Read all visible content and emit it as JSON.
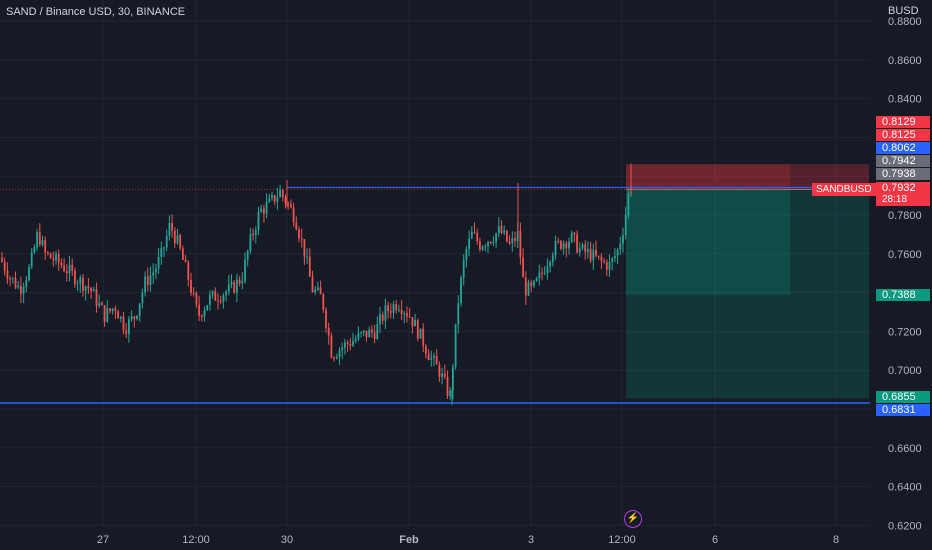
{
  "header": {
    "title": "SAND / Binance USD, 30, BINANCE",
    "currency": "BUSD"
  },
  "colors": {
    "background": "#161a25",
    "up": "#26a69a",
    "down": "#ef5350",
    "level_line": "#2962ff",
    "stop_zone": "#f23645",
    "target_zone": "#089981",
    "current_price_line": "#f23645"
  },
  "price_tags": [
    {
      "label": "0.8129",
      "color": "#f23645"
    },
    {
      "label": "0.8125",
      "color": "#f23645"
    },
    {
      "label": "0.8062",
      "color": "#2962ff"
    },
    {
      "label": "0.7942",
      "color": "#6a6d78"
    },
    {
      "label": "0.7938",
      "color": "#6a6d78"
    },
    {
      "label": "0.7932",
      "color": "#f23645"
    },
    {
      "label": "0.7388",
      "color": "#089981"
    },
    {
      "label": "0.6855",
      "color": "#089981"
    },
    {
      "label": "0.6831",
      "color": "#2962ff"
    }
  ],
  "symbol_tag": {
    "symbol": "SANDBUSD",
    "timer": "28:18"
  },
  "event_icon": "lightning-bolt-icon",
  "chart_data": {
    "type": "candlestick",
    "y_axis": {
      "min": 0.62,
      "max": 0.889,
      "position": "right",
      "ticks": [
        0.88,
        0.86,
        0.84,
        0.78,
        0.76,
        0.72,
        0.7,
        0.66,
        0.64,
        0.62
      ],
      "tick_labels": [
        "0.8800",
        "0.8600",
        "0.8400",
        "0.7800",
        "0.7600",
        "0.7200",
        "0.7000",
        "0.6600",
        "0.6400",
        "0.6200"
      ]
    },
    "x_axis": {
      "labels": [
        "27",
        "12:00",
        "30",
        "Feb",
        "3",
        "12:00",
        "6",
        "8"
      ]
    },
    "grid": true,
    "current_price": 0.7932,
    "horizontal_lines": [
      {
        "price": 0.7942,
        "color": "#2962ff",
        "start_label": "30"
      },
      {
        "price": 0.6831,
        "color": "#2962ff",
        "start_label": null
      }
    ],
    "position": {
      "entry": 0.7932,
      "stop": 0.8062,
      "targets": [
        0.7388,
        0.6855
      ]
    },
    "price_path": [
      [
        0,
        0.758
      ],
      [
        10,
        0.748
      ],
      [
        20,
        0.742
      ],
      [
        30,
        0.753
      ],
      [
        38,
        0.771
      ],
      [
        45,
        0.76
      ],
      [
        60,
        0.755
      ],
      [
        75,
        0.748
      ],
      [
        90,
        0.742
      ],
      [
        105,
        0.728
      ],
      [
        115,
        0.733
      ],
      [
        125,
        0.722
      ],
      [
        135,
        0.728
      ],
      [
        145,
        0.745
      ],
      [
        155,
        0.752
      ],
      [
        162,
        0.76
      ],
      [
        170,
        0.775
      ],
      [
        178,
        0.765
      ],
      [
        188,
        0.748
      ],
      [
        198,
        0.728
      ],
      [
        210,
        0.737
      ],
      [
        220,
        0.739
      ],
      [
        232,
        0.742
      ],
      [
        242,
        0.748
      ],
      [
        250,
        0.766
      ],
      [
        260,
        0.782
      ],
      [
        270,
        0.786
      ],
      [
        280,
        0.792
      ],
      [
        286,
        0.787
      ],
      [
        295,
        0.779
      ],
      [
        305,
        0.76
      ],
      [
        312,
        0.742
      ],
      [
        322,
        0.737
      ],
      [
        332,
        0.708
      ],
      [
        342,
        0.712
      ],
      [
        352,
        0.715
      ],
      [
        362,
        0.718
      ],
      [
        375,
        0.72
      ],
      [
        385,
        0.73
      ],
      [
        398,
        0.735
      ],
      [
        410,
        0.728
      ],
      [
        420,
        0.718
      ],
      [
        430,
        0.707
      ],
      [
        440,
        0.699
      ],
      [
        450,
        0.686
      ],
      [
        458,
        0.735
      ],
      [
        465,
        0.76
      ],
      [
        472,
        0.77
      ],
      [
        480,
        0.765
      ],
      [
        490,
        0.768
      ],
      [
        500,
        0.772
      ],
      [
        510,
        0.764
      ],
      [
        518,
        0.77
      ],
      [
        524,
        0.742
      ],
      [
        532,
        0.741
      ],
      [
        542,
        0.75
      ],
      [
        552,
        0.762
      ],
      [
        562,
        0.766
      ],
      [
        572,
        0.768
      ],
      [
        580,
        0.762
      ],
      [
        590,
        0.76
      ],
      [
        600,
        0.756
      ],
      [
        610,
        0.754
      ],
      [
        618,
        0.762
      ],
      [
        624,
        0.775
      ],
      [
        630,
        0.796
      ],
      [
        632,
        0.793
      ]
    ]
  }
}
